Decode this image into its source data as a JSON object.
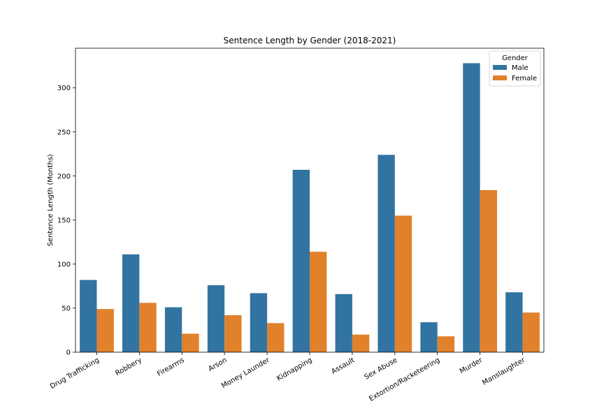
{
  "chart_data": {
    "type": "bar",
    "title": "Sentence Length by Gender (2018-2021)",
    "xlabel": "",
    "ylabel": "Sentence Length (Months)",
    "ylim": [
      0,
      345
    ],
    "yticks": [
      0,
      50,
      100,
      150,
      200,
      250,
      300
    ],
    "grid": false,
    "legend": {
      "title": "Gender",
      "placement": "top-right"
    },
    "categories": [
      "Drug Trafficking",
      "Robbery",
      "Firearms",
      "Arson",
      "Money Launder",
      "Kidnapping",
      "Assault",
      "Sex Abuse",
      "Extortion/Racketeering",
      "Murder",
      "Manslaughter"
    ],
    "series": [
      {
        "name": "Male",
        "color": "#3274a1",
        "values": [
          82,
          111,
          51,
          76,
          67,
          207,
          66,
          224,
          34,
          328,
          68
        ]
      },
      {
        "name": "Female",
        "color": "#e1812c",
        "values": [
          49,
          56,
          21,
          42,
          33,
          114,
          20,
          155,
          18,
          184,
          45
        ]
      }
    ]
  }
}
